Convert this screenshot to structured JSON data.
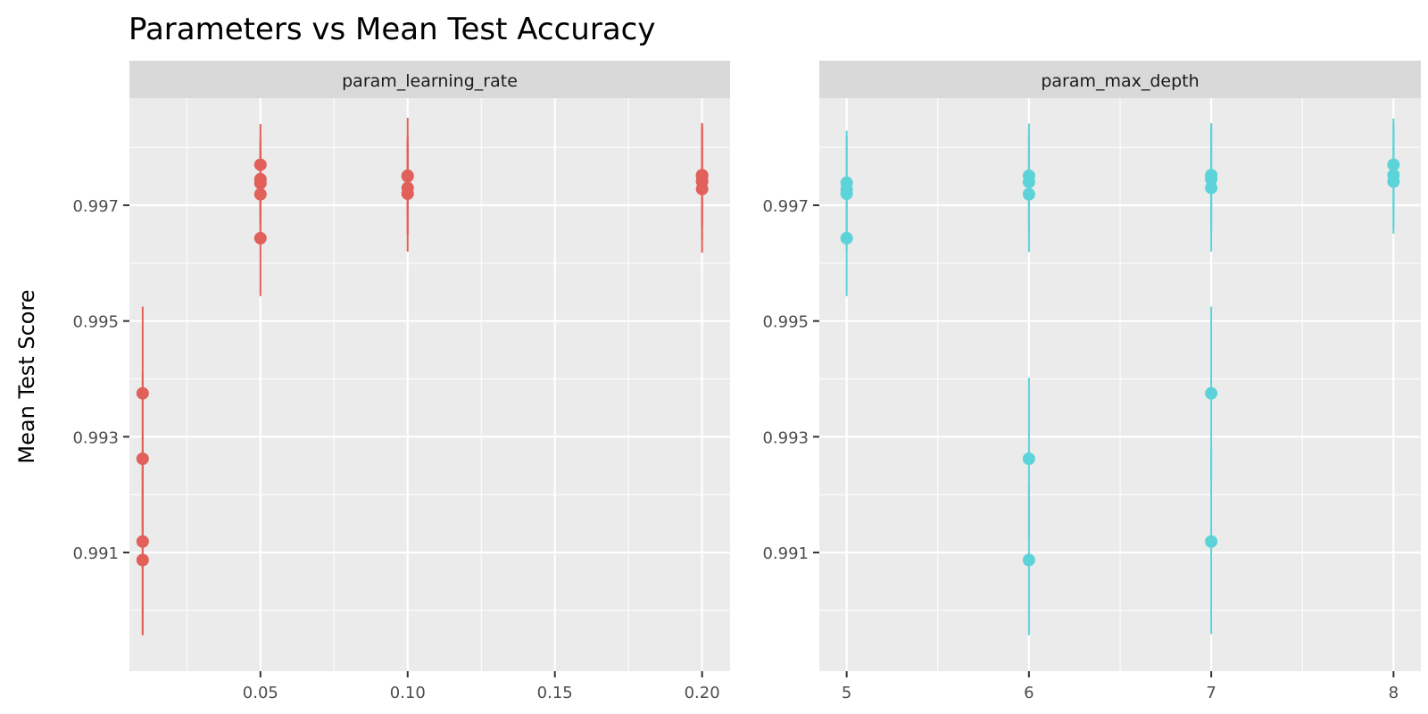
{
  "chart_data": {
    "type": "scatter",
    "title": "Parameters vs Mean Test Accuracy",
    "ylabel": "Mean Test Score",
    "ylim": [
      0.98895,
      0.99885
    ],
    "y_ticks": [
      "0.991",
      "0.993",
      "0.995",
      "0.997"
    ],
    "y_tick_values": [
      0.991,
      0.993,
      0.995,
      0.997
    ],
    "grid": true,
    "legend": "none",
    "panels": [
      {
        "strip": "param_learning_rate",
        "color": "#E1605A",
        "xlim": [
          0.0055,
          0.2095
        ],
        "x_ticks": [
          "0.05",
          "0.10",
          "0.15",
          "0.20"
        ],
        "x_tick_values": [
          0.05,
          0.1,
          0.15,
          0.2
        ],
        "points": [
          {
            "x": 0.01,
            "y": 0.99375,
            "err": 0.0015
          },
          {
            "x": 0.01,
            "y": 0.99262,
            "err": 0.0015
          },
          {
            "x": 0.01,
            "y": 0.99119,
            "err": 0.0016
          },
          {
            "x": 0.01,
            "y": 0.99087,
            "err": 0.0013
          },
          {
            "x": 0.05,
            "y": 0.9977,
            "err": 0.0007
          },
          {
            "x": 0.05,
            "y": 0.99745,
            "err": 0.0007
          },
          {
            "x": 0.05,
            "y": 0.99738,
            "err": 0.0007
          },
          {
            "x": 0.05,
            "y": 0.99719,
            "err": 0.0007
          },
          {
            "x": 0.05,
            "y": 0.99643,
            "err": 0.001
          },
          {
            "x": 0.1,
            "y": 0.99751,
            "err": 0.001
          },
          {
            "x": 0.1,
            "y": 0.9975,
            "err": 0.0006
          },
          {
            "x": 0.1,
            "y": 0.9973,
            "err": 0.0008
          },
          {
            "x": 0.1,
            "y": 0.9972,
            "err": 0.001
          },
          {
            "x": 0.2,
            "y": 0.99752,
            "err": 0.0009
          },
          {
            "x": 0.2,
            "y": 0.9975,
            "err": 0.0008
          },
          {
            "x": 0.2,
            "y": 0.99741,
            "err": 0.001
          },
          {
            "x": 0.2,
            "y": 0.99728,
            "err": 0.0011
          }
        ]
      },
      {
        "strip": "param_max_depth",
        "color": "#5BD3D9",
        "xlim": [
          4.85,
          8.15
        ],
        "x_ticks": [
          "5",
          "6",
          "7",
          "8"
        ],
        "x_tick_values": [
          5,
          6,
          7,
          8
        ],
        "points": [
          {
            "x": 5,
            "y": 0.99739,
            "err": 0.0009
          },
          {
            "x": 5,
            "y": 0.99728,
            "err": 0.0009
          },
          {
            "x": 5,
            "y": 0.9972,
            "err": 0.001
          },
          {
            "x": 5,
            "y": 0.99643,
            "err": 0.001
          },
          {
            "x": 6,
            "y": 0.99751,
            "err": 0.0009
          },
          {
            "x": 6,
            "y": 0.9974,
            "err": 0.0009
          },
          {
            "x": 6,
            "y": 0.99719,
            "err": 0.001
          },
          {
            "x": 6,
            "y": 0.99262,
            "err": 0.0014
          },
          {
            "x": 6,
            "y": 0.99087,
            "err": 0.0013
          },
          {
            "x": 7,
            "y": 0.99752,
            "err": 0.0009
          },
          {
            "x": 7,
            "y": 0.99745,
            "err": 0.0009
          },
          {
            "x": 7,
            "y": 0.9973,
            "err": 0.0011
          },
          {
            "x": 7,
            "y": 0.99375,
            "err": 0.0015
          },
          {
            "x": 7,
            "y": 0.99119,
            "err": 0.0016
          },
          {
            "x": 8,
            "y": 0.9977,
            "err": 0.0008
          },
          {
            "x": 8,
            "y": 0.99752,
            "err": 0.0009
          },
          {
            "x": 8,
            "y": 0.99741,
            "err": 0.0009
          }
        ]
      }
    ]
  }
}
